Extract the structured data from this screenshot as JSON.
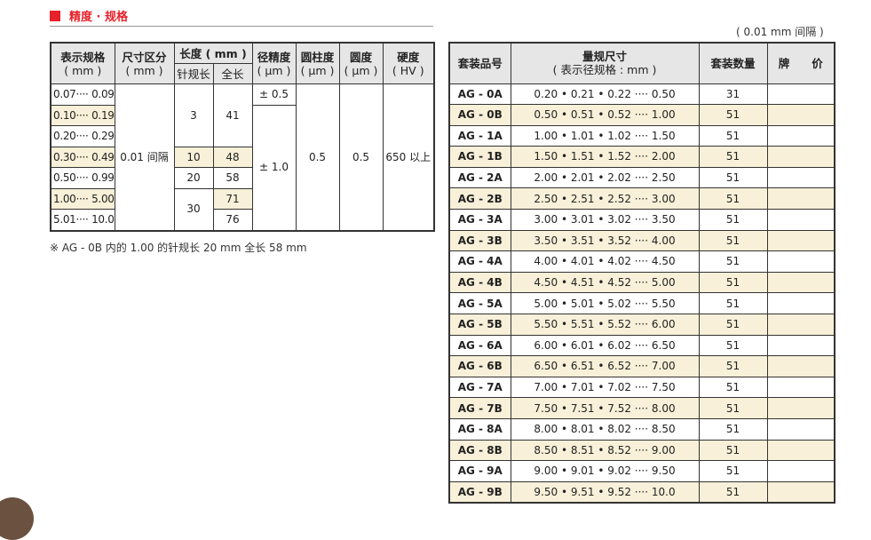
{
  "section_title": "精度 · 规格",
  "interval_note": "( 0.01 mm  间隔 )",
  "left_table": {
    "headers": {
      "spec": "表示规格",
      "spec_unit": "( mm )",
      "division": "尺寸区分",
      "division_unit": "( mm )",
      "length": "长度 ( mm )",
      "pin_length": "针规长",
      "total_length": "全长",
      "diameter": "径精度",
      "diameter_unit": "( μm )",
      "cylindricity": "圆柱度",
      "cylindricity_unit": "( μm )",
      "roundness": "圆度",
      "roundness_unit": "( μm )",
      "hardness": "硬度",
      "hardness_unit": "( HV )"
    },
    "ranges": [
      "0.07···· 0.09",
      "0.10···· 0.19",
      "0.20···· 0.29",
      "0.30···· 0.49",
      "0.50···· 0.99",
      "1.00···· 5.00",
      "5.01···· 10.0"
    ],
    "division": "0.01 间隔",
    "pin_lengths": [
      "3",
      "10",
      "20",
      "30"
    ],
    "total_lengths": [
      "41",
      "48",
      "58",
      "71",
      "76"
    ],
    "diameter_acc": [
      "± 0.5",
      "± 1.0"
    ],
    "cylindricity": "0.5",
    "roundness": "0.5",
    "hardness": "650 以上"
  },
  "footnote": "※ AG - 0B 内的 1.00 的针规长 20 mm 全长  58 mm",
  "right_table": {
    "headers": {
      "code": "套装品号",
      "size": "量规尺寸",
      "size_sub": "( 表示径规格 : mm )",
      "qty": "套装数量",
      "price": "牌　　价"
    },
    "rows": [
      {
        "code": "AG - 0A",
        "size": "0.20 • 0.21 • 0.22 ····  0.50",
        "qty": "31"
      },
      {
        "code": "AG - 0B",
        "size": "0.50 • 0.51 • 0.52 ····  1.00",
        "qty": "51"
      },
      {
        "code": "AG - 1A",
        "size": "1.00 • 1.01 • 1.02 ····  1.50",
        "qty": "51"
      },
      {
        "code": "AG - 1B",
        "size": "1.50 • 1.51 • 1.52 ····  2.00",
        "qty": "51"
      },
      {
        "code": "AG - 2A",
        "size": "2.00 • 2.01 • 2.02 ····  2.50",
        "qty": "51"
      },
      {
        "code": "AG - 2B",
        "size": "2.50 • 2.51 • 2.52 ····  3.00",
        "qty": "51"
      },
      {
        "code": "AG - 3A",
        "size": "3.00 • 3.01 • 3.02 ····  3.50",
        "qty": "51"
      },
      {
        "code": "AG - 3B",
        "size": "3.50 • 3.51 • 3.52 ····  4.00",
        "qty": "51"
      },
      {
        "code": "AG - 4A",
        "size": "4.00 • 4.01 • 4.02 ····  4.50",
        "qty": "51"
      },
      {
        "code": "AG - 4B",
        "size": "4.50 • 4.51 • 4.52 ····  5.00",
        "qty": "51"
      },
      {
        "code": "AG - 5A",
        "size": "5.00 • 5.01 • 5.02 ····  5.50",
        "qty": "51"
      },
      {
        "code": "AG - 5B",
        "size": "5.50 • 5.51 • 5.52 ····  6.00",
        "qty": "51"
      },
      {
        "code": "AG - 6A",
        "size": "6.00 • 6.01 • 6.02 ····  6.50",
        "qty": "51"
      },
      {
        "code": "AG - 6B",
        "size": "6.50 • 6.51 • 6.52 ····  7.00",
        "qty": "51"
      },
      {
        "code": "AG - 7A",
        "size": "7.00 • 7.01 • 7.02 ····  7.50",
        "qty": "51"
      },
      {
        "code": "AG - 7B",
        "size": "7.50 • 7.51 • 7.52 ····  8.00",
        "qty": "51"
      },
      {
        "code": "AG - 8A",
        "size": "8.00 • 8.01 • 8.02 ····  8.50",
        "qty": "51"
      },
      {
        "code": "AG - 8B",
        "size": "8.50 • 8.51 • 8.52 ····  9.00",
        "qty": "51"
      },
      {
        "code": "AG - 9A",
        "size": "9.00 • 9.01 • 9.02 ····  9.50",
        "qty": "51"
      },
      {
        "code": "AG - 9B",
        "size": "9.50 • 9.51 • 9.52 ····  10.0",
        "qty": "51"
      }
    ]
  },
  "colors": {
    "accent": "#e8202a",
    "highlight_row": "#f8f0d8",
    "header_bg": "#e6e6e6"
  }
}
